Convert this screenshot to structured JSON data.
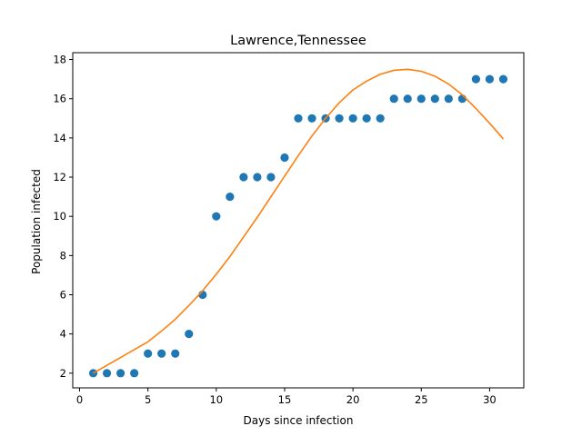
{
  "chart_data": {
    "type": "scatter",
    "title": "Lawrence,Tennessee",
    "xlabel": "Days since infection",
    "ylabel": "Population infected",
    "xlim": [
      -0.5,
      32.5
    ],
    "ylim": [
      1.25,
      18.35
    ],
    "xticks": [
      0,
      5,
      10,
      15,
      20,
      25,
      30
    ],
    "yticks": [
      2,
      4,
      6,
      8,
      10,
      12,
      14,
      16,
      18
    ],
    "grid": false,
    "legend": "none",
    "series": [
      {
        "kind": "scatter",
        "color": "#1f77b4",
        "x": [
          1,
          2,
          3,
          4,
          5,
          6,
          7,
          8,
          9,
          10,
          11,
          12,
          13,
          14,
          15,
          16,
          17,
          18,
          19,
          20,
          21,
          22,
          23,
          24,
          25,
          26,
          27,
          28,
          29,
          30,
          31
        ],
        "y": [
          2,
          2,
          2,
          2,
          3,
          3,
          3,
          4,
          6,
          10,
          11,
          12,
          12,
          12,
          13,
          15,
          15,
          15,
          15,
          15,
          15,
          15,
          16,
          16,
          16,
          16,
          16,
          16,
          17,
          17,
          17
        ]
      },
      {
        "kind": "line",
        "color": "#ff7f0e",
        "x": [
          1,
          2,
          3,
          4,
          5,
          6,
          7,
          8,
          9,
          10,
          11,
          12,
          13,
          14,
          15,
          16,
          17,
          18,
          19,
          20,
          21,
          22,
          23,
          24,
          25,
          26,
          27,
          28,
          29,
          30,
          31
        ],
        "y": [
          2.0,
          2.4,
          2.8,
          3.2,
          3.6,
          4.15,
          4.75,
          5.45,
          6.2,
          7.05,
          7.95,
          8.95,
          9.95,
          11.0,
          12.05,
          13.1,
          14.1,
          15.0,
          15.8,
          16.45,
          16.9,
          17.25,
          17.45,
          17.5,
          17.4,
          17.15,
          16.75,
          16.2,
          15.5,
          14.75,
          13.95
        ]
      }
    ]
  }
}
